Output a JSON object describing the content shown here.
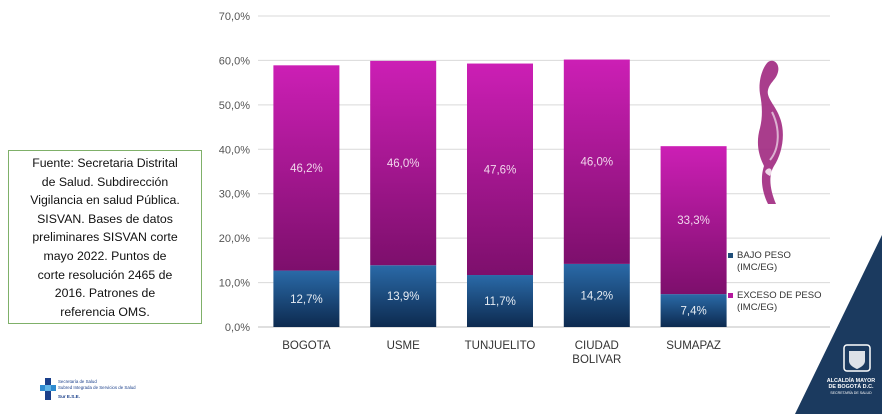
{
  "chart_data": {
    "type": "bar",
    "stacked": true,
    "categories": [
      "BOGOTA",
      "USME",
      "TUNJUELITO",
      "CIUDAD\nBOLIVAR",
      "SUMAPAZ"
    ],
    "series": [
      {
        "name": "BAJO PESO\n(IMC/EG)",
        "values": [
          12.7,
          13.9,
          11.7,
          14.2,
          7.4
        ],
        "labels": [
          "12,7%",
          "13,9%",
          "11,7%",
          "14,2%",
          "7,4%"
        ],
        "color": "#1f4e79"
      },
      {
        "name": "EXCESO DE PESO\n(IMC/EG)",
        "values": [
          46.2,
          46.0,
          47.6,
          46.0,
          33.3
        ],
        "labels": [
          "46,2%",
          "46,0%",
          "47,6%",
          "46,0%",
          "33,3%"
        ],
        "color": "#b4179c"
      }
    ],
    "yticks": [
      "0,0%",
      "10,0%",
      "20,0%",
      "30,0%",
      "40,0%",
      "50,0%",
      "60,0%",
      "70,0%"
    ],
    "ylim": [
      0,
      70
    ],
    "grid": true,
    "legend_position": "right"
  },
  "source_note": "Fuente: Secretaria Distrital\nde Salud. Subdirección\nVigilancia en salud Pública.\nSISVAN. Bases de datos\npreliminares SISVAN corte\nmayo 2022. Puntos de\ncorte resolución 2465 de\n2016. Patrones de\nreferencia OMS.",
  "logo_left": {
    "name": "Secretaría de Salud\nSubred Integrada de Servicios de Salud",
    "sub": "Sur E.S.E."
  },
  "logo_right": {
    "line1": "ALCALDÍA MAYOR",
    "line2": "DE BOGOTÁ D.C.",
    "line3": "SECRETARÍA DE SALUD"
  },
  "colors": {
    "axis_text": "#555555",
    "grid": "#d9d9d9",
    "silhouette": "#a0287f",
    "corner": "#1b3a5f"
  }
}
